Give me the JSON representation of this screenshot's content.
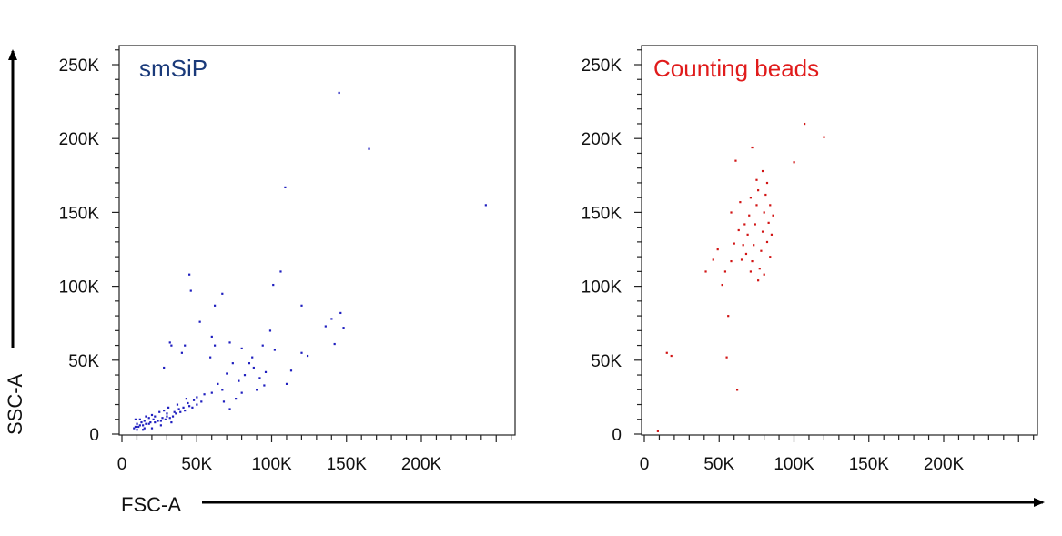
{
  "figure": {
    "y_axis_label": "SSC-A",
    "x_axis_label": "FSC-A",
    "arrow_color": "#000000"
  },
  "chart_data": [
    {
      "type": "scatter",
      "panel_label": "smSiP",
      "label_color": "#1a3a7a",
      "point_color": "#1f1fbf",
      "xlabel": "FSC-A",
      "ylabel": "SSC-A",
      "xlim": [
        0,
        262144
      ],
      "ylim": [
        0,
        262144
      ],
      "x_ticks": [
        0,
        50000,
        100000,
        150000,
        200000
      ],
      "x_tick_labels": [
        "0",
        "50K",
        "100K",
        "150K",
        "200K"
      ],
      "y_ticks": [
        0,
        50000,
        100000,
        150000,
        200000,
        250000
      ],
      "y_tick_labels": [
        "0",
        "50K",
        "100K",
        "150K",
        "200K",
        "250K"
      ],
      "grid": false,
      "points": [
        [
          145000,
          231000
        ],
        [
          165000,
          193000
        ],
        [
          243000,
          155000
        ],
        [
          109000,
          167000
        ],
        [
          45000,
          108000
        ],
        [
          46000,
          97000
        ],
        [
          67000,
          95000
        ],
        [
          62000,
          87000
        ],
        [
          101000,
          101000
        ],
        [
          106000,
          110000
        ],
        [
          120000,
          87000
        ],
        [
          146000,
          82000
        ],
        [
          140000,
          78000
        ],
        [
          148000,
          72000
        ],
        [
          136000,
          73000
        ],
        [
          142000,
          61000
        ],
        [
          120000,
          55000
        ],
        [
          124000,
          53000
        ],
        [
          52000,
          76000
        ],
        [
          42000,
          60000
        ],
        [
          32000,
          62000
        ],
        [
          33000,
          60000
        ],
        [
          40000,
          55000
        ],
        [
          28000,
          45000
        ],
        [
          60000,
          66000
        ],
        [
          62000,
          60000
        ],
        [
          59000,
          52000
        ],
        [
          72000,
          62000
        ],
        [
          80000,
          58000
        ],
        [
          87000,
          52000
        ],
        [
          94000,
          60000
        ],
        [
          99000,
          70000
        ],
        [
          85000,
          48000
        ],
        [
          92000,
          38000
        ],
        [
          95000,
          33000
        ],
        [
          70000,
          41000
        ],
        [
          76000,
          24000
        ],
        [
          67000,
          30000
        ],
        [
          64000,
          34000
        ],
        [
          60000,
          28000
        ],
        [
          55000,
          27000
        ],
        [
          53000,
          22000
        ],
        [
          50000,
          25000
        ],
        [
          50000,
          20000
        ],
        [
          47000,
          18000
        ],
        [
          48000,
          23000
        ],
        [
          45000,
          19000
        ],
        [
          42000,
          16000
        ],
        [
          44000,
          21000
        ],
        [
          39000,
          15000
        ],
        [
          41000,
          18000
        ],
        [
          36000,
          14000
        ],
        [
          38000,
          17000
        ],
        [
          34000,
          12000
        ],
        [
          35000,
          15000
        ],
        [
          32000,
          11000
        ],
        [
          30000,
          12000
        ],
        [
          29000,
          10000
        ],
        [
          27000,
          11000
        ],
        [
          26000,
          9000
        ],
        [
          24000,
          9000
        ],
        [
          22000,
          8000
        ],
        [
          21000,
          10000
        ],
        [
          19000,
          8000
        ],
        [
          18000,
          7000
        ],
        [
          16000,
          7000
        ],
        [
          15000,
          9000
        ],
        [
          14000,
          6000
        ],
        [
          13000,
          8000
        ],
        [
          12000,
          6000
        ],
        [
          11000,
          5000
        ],
        [
          10000,
          7000
        ],
        [
          9000,
          5000
        ],
        [
          8000,
          4000
        ],
        [
          12000,
          10000
        ],
        [
          16000,
          12000
        ],
        [
          20000,
          13000
        ],
        [
          25000,
          15000
        ],
        [
          31000,
          18000
        ],
        [
          37000,
          20000
        ],
        [
          43000,
          24000
        ],
        [
          30000,
          14000
        ],
        [
          22000,
          12000
        ],
        [
          18000,
          11000
        ],
        [
          9000,
          10000
        ],
        [
          10000,
          3000
        ],
        [
          14000,
          3000
        ],
        [
          20000,
          4000
        ],
        [
          26000,
          6000
        ],
        [
          33000,
          8000
        ],
        [
          15000,
          4000
        ],
        [
          28000,
          16000
        ],
        [
          82000,
          40000
        ],
        [
          88000,
          45000
        ],
        [
          90000,
          30000
        ],
        [
          74000,
          48000
        ],
        [
          78000,
          36000
        ],
        [
          68000,
          22000
        ],
        [
          96000,
          42000
        ],
        [
          102000,
          57000
        ],
        [
          110000,
          34000
        ],
        [
          113000,
          43000
        ],
        [
          72000,
          17000
        ],
        [
          80000,
          28000
        ]
      ]
    },
    {
      "type": "scatter",
      "panel_label": "Counting beads",
      "label_color": "#e01b1b",
      "point_color": "#d11414",
      "xlabel": "FSC-A",
      "ylabel": "SSC-A",
      "xlim": [
        0,
        262144
      ],
      "ylim": [
        0,
        262144
      ],
      "x_ticks": [
        0,
        50000,
        100000,
        150000,
        200000
      ],
      "x_tick_labels": [
        "0",
        "50K",
        "100K",
        "150K",
        "200K"
      ],
      "y_ticks": [
        0,
        50000,
        100000,
        150000,
        200000,
        250000
      ],
      "y_tick_labels": [
        "0",
        "50K",
        "100K",
        "150K",
        "200K",
        "250K"
      ],
      "grid": false,
      "points": [
        [
          107000,
          210000
        ],
        [
          120000,
          201000
        ],
        [
          100000,
          184000
        ],
        [
          72000,
          194000
        ],
        [
          61000,
          185000
        ],
        [
          64000,
          157000
        ],
        [
          58000,
          150000
        ],
        [
          60000,
          129000
        ],
        [
          58000,
          117000
        ],
        [
          54000,
          110000
        ],
        [
          52000,
          101000
        ],
        [
          41000,
          110000
        ],
        [
          46000,
          118000
        ],
        [
          49000,
          125000
        ],
        [
          56000,
          80000
        ],
        [
          55000,
          52000
        ],
        [
          62000,
          30000
        ],
        [
          15000,
          55000
        ],
        [
          18000,
          53000
        ],
        [
          9000,
          2000
        ],
        [
          68000,
          122000
        ],
        [
          69000,
          135000
        ],
        [
          70000,
          148000
        ],
        [
          71000,
          160000
        ],
        [
          72000,
          117000
        ],
        [
          73000,
          128000
        ],
        [
          74000,
          142000
        ],
        [
          75000,
          155000
        ],
        [
          76000,
          165000
        ],
        [
          77000,
          112000
        ],
        [
          78000,
          124000
        ],
        [
          79000,
          137000
        ],
        [
          80000,
          150000
        ],
        [
          81000,
          162000
        ],
        [
          82000,
          130000
        ],
        [
          83000,
          143000
        ],
        [
          84000,
          120000
        ],
        [
          85000,
          135000
        ],
        [
          86000,
          148000
        ],
        [
          75000,
          172000
        ],
        [
          79000,
          178000
        ],
        [
          82000,
          170000
        ],
        [
          71000,
          110000
        ],
        [
          66000,
          128000
        ],
        [
          67000,
          142000
        ],
        [
          63000,
          138000
        ],
        [
          65000,
          118000
        ],
        [
          76000,
          104000
        ],
        [
          80000,
          108000
        ],
        [
          84000,
          155000
        ]
      ]
    }
  ]
}
